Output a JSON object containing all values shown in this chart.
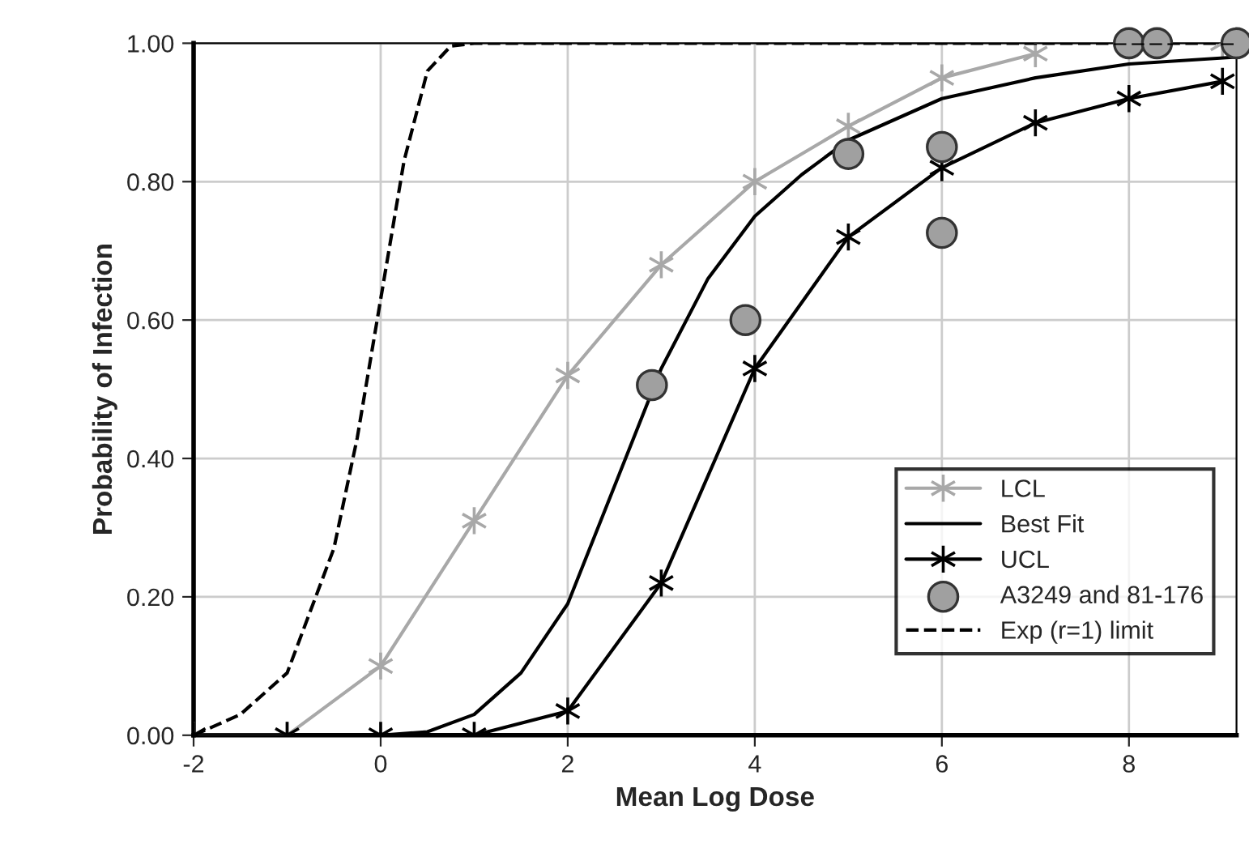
{
  "chart_data": {
    "type": "line",
    "xlabel": "Mean Log Dose",
    "ylabel": "Probability of Infection",
    "xlim": [
      -2,
      9.15
    ],
    "ylim": [
      0,
      1
    ],
    "xticks": [
      -2,
      0,
      2,
      4,
      6,
      8
    ],
    "yticks": [
      {
        "value": 0,
        "label": "0.00"
      },
      {
        "value": 0.2,
        "label": "0.20"
      },
      {
        "value": 0.4,
        "label": "0.40"
      },
      {
        "value": 0.6,
        "label": "0.60"
      },
      {
        "value": 0.8,
        "label": "0.80"
      },
      {
        "value": 1,
        "label": "1.00"
      }
    ],
    "grid": true,
    "legend": "bottom right",
    "series": [
      {
        "name": "LCL",
        "color": "#a8a8a8",
        "marker": "cross",
        "line_style": "solid",
        "x": [
          -2,
          -1,
          0,
          1,
          2,
          3,
          4,
          5,
          6,
          7,
          8,
          9
        ],
        "values": [
          0,
          0,
          0.1,
          0.31,
          0.52,
          0.68,
          0.8,
          0.88,
          0.95,
          0.985,
          null,
          1.0
        ]
      },
      {
        "name": "Best Fit",
        "color": "#000000",
        "marker": "none",
        "line_style": "solid",
        "x": [
          0,
          0.5,
          1,
          1.5,
          2,
          2.5,
          3,
          3.5,
          4,
          4.5,
          5,
          6,
          7,
          8,
          9.15
        ],
        "values": [
          0,
          0.005,
          0.03,
          0.09,
          0.19,
          0.36,
          0.53,
          0.66,
          0.75,
          0.81,
          0.86,
          0.92,
          0.95,
          0.97,
          0.98
        ]
      },
      {
        "name": "UCL",
        "color": "#000000",
        "marker": "cross",
        "line_style": "solid",
        "x": [
          -2,
          -1,
          0,
          1,
          2,
          3,
          4,
          5,
          6,
          7,
          8,
          9
        ],
        "values": [
          0,
          0,
          0,
          0,
          0.035,
          0.22,
          0.53,
          0.72,
          0.82,
          0.885,
          0.92,
          0.945
        ]
      },
      {
        "name": "A3249 and 81-176",
        "type": "scatter",
        "color": "#a0a0a0",
        "marker": "circle",
        "x": [
          2.9,
          3.9,
          5.0,
          6.0,
          6.0,
          8.0,
          8.3,
          9.15
        ],
        "values": [
          0.506,
          0.6,
          0.84,
          0.85,
          0.726,
          1.0,
          1.0,
          1.0
        ]
      },
      {
        "name": "Exp (r=1) limit",
        "color": "#000000",
        "marker": "none",
        "line_style": "dashed",
        "x": [
          -2,
          -1.5,
          -1,
          -0.5,
          -0.25,
          0,
          0.25,
          0.5,
          0.75,
          1,
          9.15
        ],
        "values": [
          0,
          0.03,
          0.09,
          0.27,
          0.43,
          0.63,
          0.83,
          0.96,
          0.996,
          1.0,
          1.0
        ]
      }
    ]
  }
}
